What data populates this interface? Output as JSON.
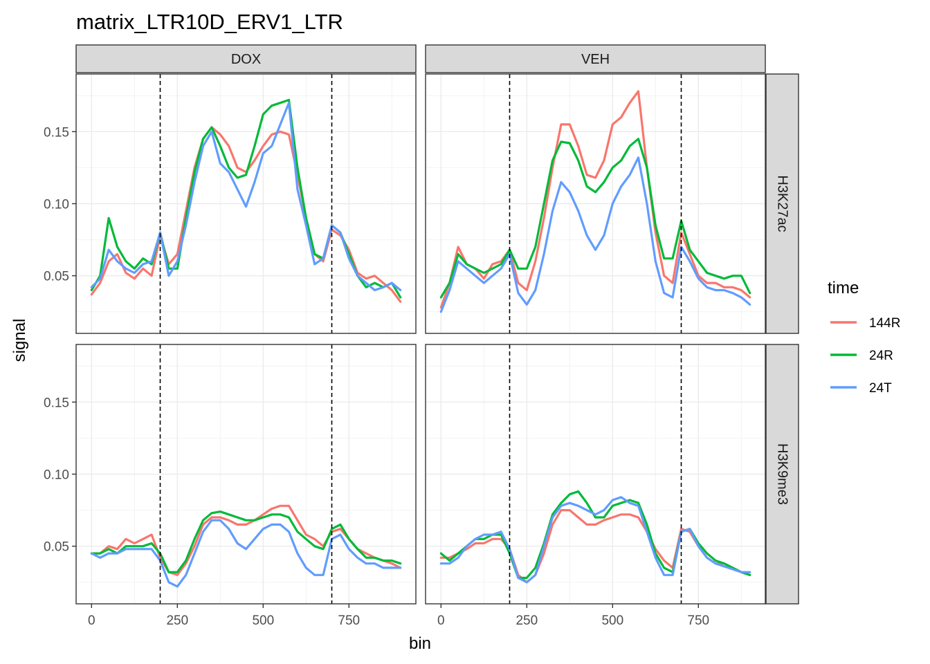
{
  "chart_data": {
    "type": "line",
    "title": "matrix_LTR10D_ERV1_LTR",
    "xlabel": "bin",
    "ylabel": "signal",
    "xlim": [
      -45,
      945
    ],
    "ylim": [
      0.01,
      0.19
    ],
    "x_ticks": [
      0,
      250,
      500,
      750
    ],
    "x_tick_labels": [
      "0",
      "250",
      "500",
      "750"
    ],
    "y_ticks": [
      0.05,
      0.1,
      0.15
    ],
    "y_tick_labels": [
      "0.05",
      "0.10",
      "0.15"
    ],
    "col_facets": [
      "DOX",
      "VEH"
    ],
    "row_facets": [
      "H3K27ac",
      "H3K9me3"
    ],
    "vlines": [
      200,
      700
    ],
    "grid": true,
    "legend": {
      "title": "time",
      "position": "right",
      "items": [
        {
          "name": "144R",
          "color": "#F8766D"
        },
        {
          "name": "24R",
          "color": "#00BA38"
        },
        {
          "name": "24T",
          "color": "#619CFF"
        }
      ]
    },
    "x": [
      0,
      25,
      50,
      75,
      100,
      125,
      150,
      175,
      200,
      225,
      250,
      275,
      300,
      325,
      350,
      375,
      400,
      425,
      450,
      475,
      500,
      525,
      550,
      575,
      600,
      625,
      650,
      675,
      700,
      725,
      750,
      775,
      800,
      825,
      850,
      875,
      900
    ],
    "panels": [
      {
        "col": "DOX",
        "row": "H3K27ac",
        "series": [
          {
            "name": "144R",
            "values": [
              0.037,
              0.045,
              0.06,
              0.065,
              0.052,
              0.048,
              0.055,
              0.05,
              0.078,
              0.058,
              0.065,
              0.095,
              0.125,
              0.145,
              0.153,
              0.148,
              0.14,
              0.125,
              0.122,
              0.13,
              0.14,
              0.148,
              0.15,
              0.148,
              0.12,
              0.09,
              0.065,
              0.06,
              0.082,
              0.078,
              0.068,
              0.052,
              0.048,
              0.05,
              0.045,
              0.04,
              0.032
            ]
          },
          {
            "name": "24R",
            "values": [
              0.04,
              0.05,
              0.09,
              0.07,
              0.06,
              0.055,
              0.062,
              0.058,
              0.08,
              0.055,
              0.055,
              0.09,
              0.122,
              0.145,
              0.153,
              0.14,
              0.125,
              0.118,
              0.12,
              0.14,
              0.162,
              0.168,
              0.17,
              0.172,
              0.125,
              0.09,
              0.065,
              0.062,
              0.085,
              0.08,
              0.065,
              0.05,
              0.042,
              0.045,
              0.042,
              0.045,
              0.035
            ]
          },
          {
            "name": "24T",
            "values": [
              0.042,
              0.048,
              0.068,
              0.06,
              0.055,
              0.052,
              0.058,
              0.06,
              0.08,
              0.05,
              0.06,
              0.085,
              0.115,
              0.14,
              0.15,
              0.128,
              0.122,
              0.11,
              0.098,
              0.115,
              0.135,
              0.14,
              0.155,
              0.17,
              0.11,
              0.085,
              0.058,
              0.062,
              0.085,
              0.08,
              0.062,
              0.05,
              0.045,
              0.04,
              0.042,
              0.045,
              0.04
            ]
          }
        ]
      },
      {
        "col": "VEH",
        "row": "H3K27ac",
        "series": [
          {
            "name": "144R",
            "values": [
              0.028,
              0.045,
              0.07,
              0.058,
              0.055,
              0.048,
              0.058,
              0.06,
              0.068,
              0.045,
              0.04,
              0.06,
              0.09,
              0.125,
              0.155,
              0.155,
              0.14,
              0.12,
              0.118,
              0.13,
              0.155,
              0.16,
              0.17,
              0.178,
              0.125,
              0.08,
              0.05,
              0.045,
              0.08,
              0.065,
              0.05,
              0.045,
              0.045,
              0.042,
              0.042,
              0.04,
              0.035
            ]
          },
          {
            "name": "24R",
            "values": [
              0.035,
              0.045,
              0.065,
              0.058,
              0.055,
              0.052,
              0.055,
              0.058,
              0.068,
              0.055,
              0.055,
              0.07,
              0.1,
              0.13,
              0.143,
              0.142,
              0.13,
              0.112,
              0.108,
              0.115,
              0.125,
              0.13,
              0.14,
              0.145,
              0.125,
              0.085,
              0.062,
              0.062,
              0.088,
              0.068,
              0.06,
              0.052,
              0.05,
              0.048,
              0.05,
              0.05,
              0.038
            ]
          },
          {
            "name": "24T",
            "values": [
              0.025,
              0.04,
              0.06,
              0.055,
              0.05,
              0.045,
              0.05,
              0.055,
              0.065,
              0.038,
              0.03,
              0.04,
              0.065,
              0.095,
              0.115,
              0.108,
              0.095,
              0.078,
              0.068,
              0.078,
              0.1,
              0.112,
              0.12,
              0.132,
              0.1,
              0.06,
              0.038,
              0.035,
              0.07,
              0.06,
              0.048,
              0.042,
              0.04,
              0.04,
              0.038,
              0.035,
              0.03
            ]
          }
        ]
      },
      {
        "col": "DOX",
        "row": "H3K9me3",
        "series": [
          {
            "name": "144R",
            "values": [
              0.045,
              0.045,
              0.05,
              0.048,
              0.055,
              0.052,
              0.055,
              0.058,
              0.042,
              0.032,
              0.03,
              0.038,
              0.05,
              0.065,
              0.07,
              0.07,
              0.068,
              0.065,
              0.065,
              0.068,
              0.072,
              0.076,
              0.078,
              0.078,
              0.068,
              0.058,
              0.055,
              0.05,
              0.06,
              0.062,
              0.055,
              0.048,
              0.045,
              0.042,
              0.04,
              0.038,
              0.035
            ]
          },
          {
            "name": "24R",
            "values": [
              0.045,
              0.045,
              0.048,
              0.045,
              0.05,
              0.05,
              0.05,
              0.052,
              0.045,
              0.032,
              0.032,
              0.04,
              0.055,
              0.068,
              0.073,
              0.074,
              0.072,
              0.07,
              0.068,
              0.068,
              0.07,
              0.072,
              0.072,
              0.07,
              0.06,
              0.055,
              0.05,
              0.048,
              0.062,
              0.065,
              0.055,
              0.048,
              0.042,
              0.042,
              0.04,
              0.04,
              0.038
            ]
          },
          {
            "name": "24T",
            "values": [
              0.045,
              0.042,
              0.045,
              0.045,
              0.048,
              0.048,
              0.048,
              0.048,
              0.04,
              0.025,
              0.022,
              0.03,
              0.045,
              0.06,
              0.068,
              0.068,
              0.062,
              0.052,
              0.048,
              0.055,
              0.062,
              0.065,
              0.065,
              0.06,
              0.045,
              0.035,
              0.03,
              0.03,
              0.055,
              0.058,
              0.048,
              0.042,
              0.038,
              0.038,
              0.035,
              0.035,
              0.035
            ]
          }
        ]
      },
      {
        "col": "VEH",
        "row": "H3K9me3",
        "series": [
          {
            "name": "144R",
            "values": [
              0.042,
              0.042,
              0.045,
              0.048,
              0.052,
              0.052,
              0.055,
              0.055,
              0.048,
              0.03,
              0.025,
              0.03,
              0.045,
              0.065,
              0.075,
              0.075,
              0.07,
              0.065,
              0.065,
              0.068,
              0.07,
              0.072,
              0.072,
              0.07,
              0.06,
              0.048,
              0.04,
              0.035,
              0.062,
              0.06,
              0.05,
              0.042,
              0.038,
              0.038,
              0.035,
              0.032,
              0.03
            ]
          },
          {
            "name": "24R",
            "values": [
              0.045,
              0.04,
              0.045,
              0.05,
              0.055,
              0.055,
              0.058,
              0.058,
              0.045,
              0.028,
              0.028,
              0.035,
              0.052,
              0.072,
              0.08,
              0.086,
              0.088,
              0.08,
              0.07,
              0.07,
              0.078,
              0.08,
              0.082,
              0.08,
              0.065,
              0.045,
              0.035,
              0.032,
              0.06,
              0.062,
              0.052,
              0.045,
              0.04,
              0.038,
              0.035,
              0.032,
              0.03
            ]
          },
          {
            "name": "24T",
            "values": [
              0.038,
              0.038,
              0.042,
              0.05,
              0.055,
              0.058,
              0.058,
              0.06,
              0.048,
              0.028,
              0.025,
              0.03,
              0.05,
              0.07,
              0.078,
              0.08,
              0.078,
              0.075,
              0.072,
              0.075,
              0.082,
              0.084,
              0.08,
              0.078,
              0.06,
              0.042,
              0.03,
              0.03,
              0.06,
              0.062,
              0.05,
              0.042,
              0.038,
              0.036,
              0.034,
              0.032,
              0.032
            ]
          }
        ]
      }
    ]
  }
}
